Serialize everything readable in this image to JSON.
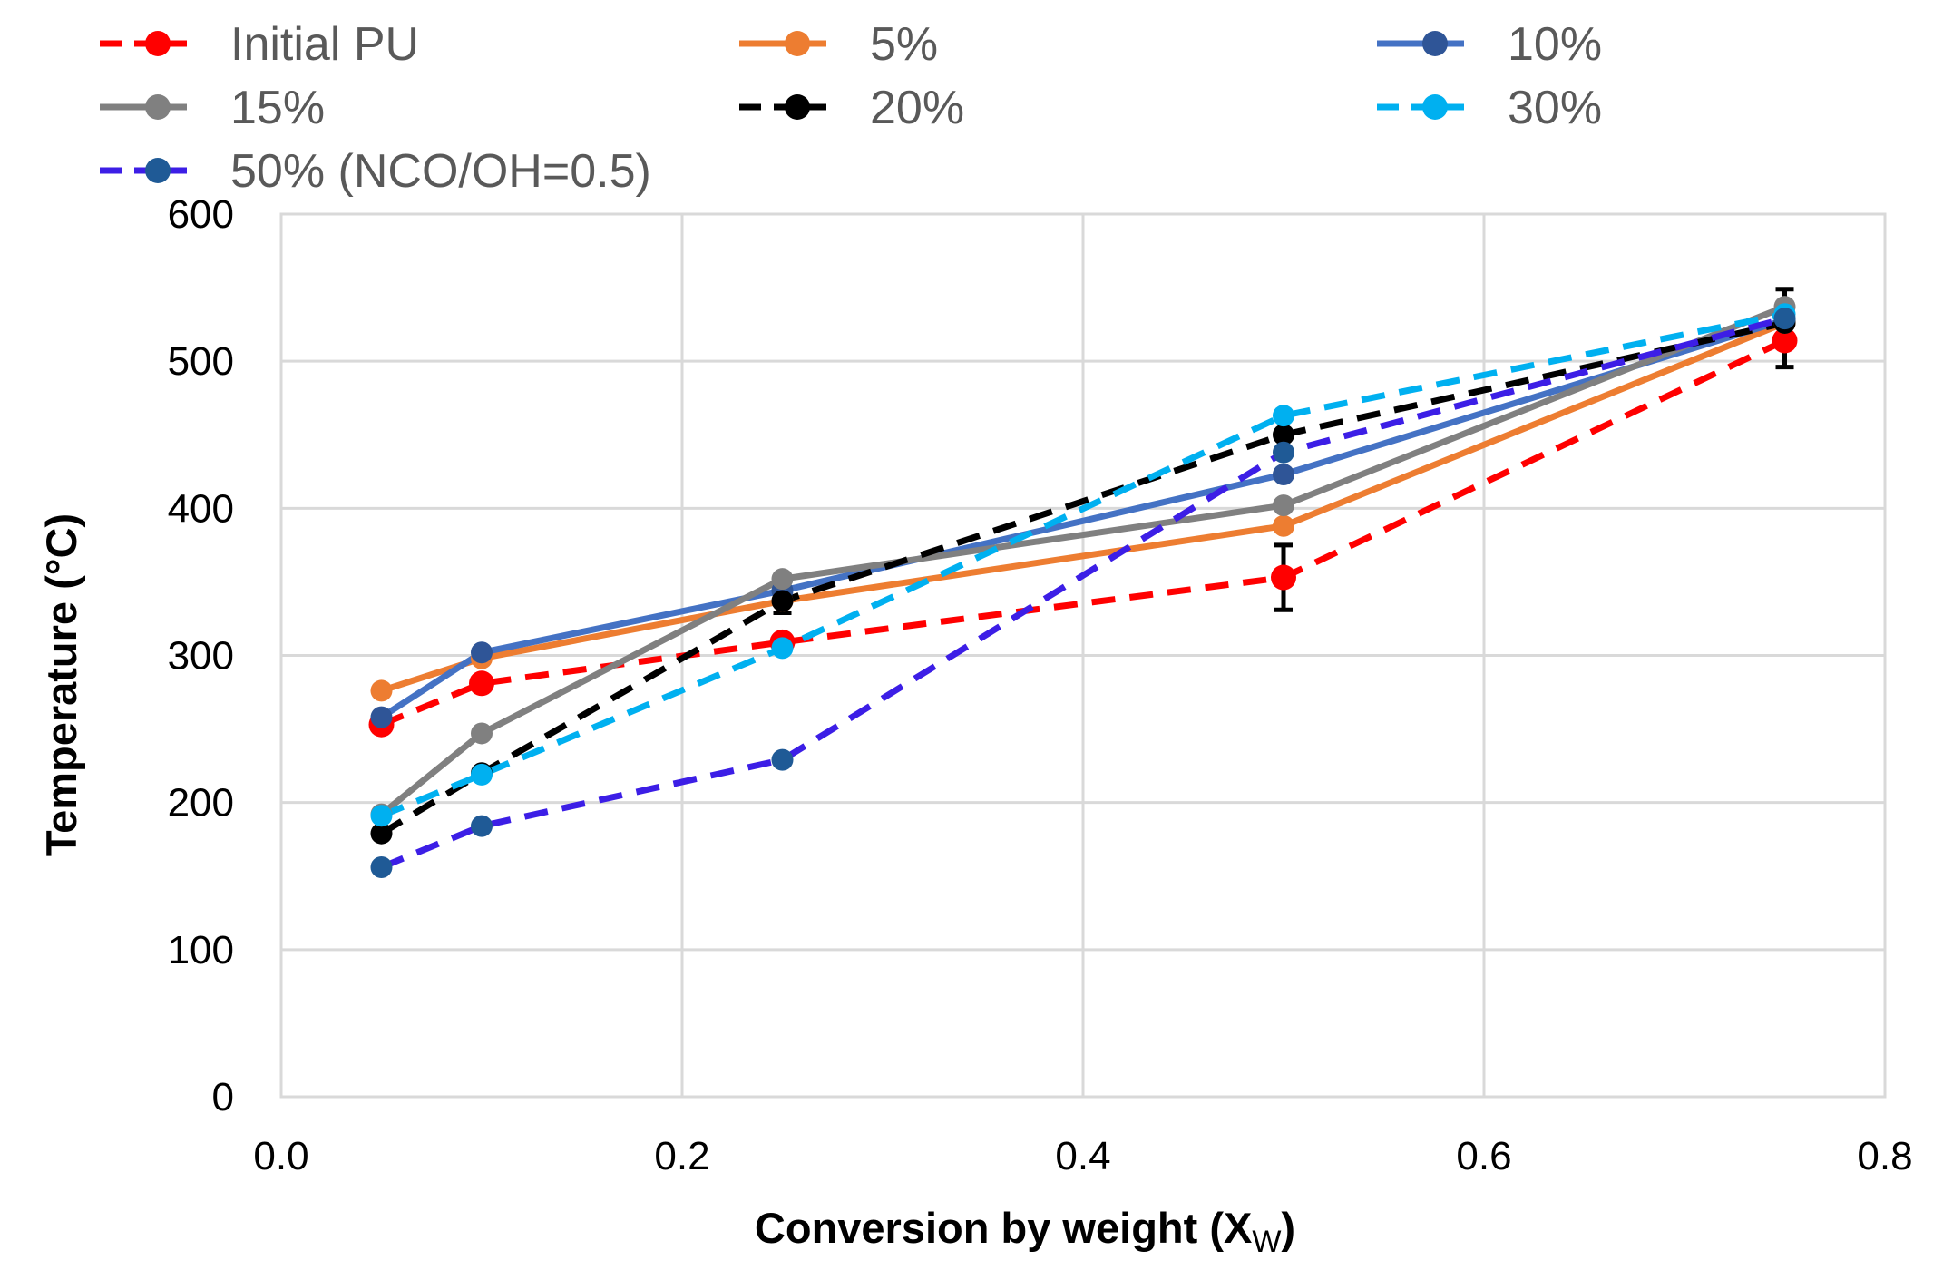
{
  "chart_data": {
    "type": "line",
    "xlabel": "Conversion by weight (X",
    "xlabel_sub": "W",
    "xlabel_close": ")",
    "ylabel": "Temperature (°C)",
    "xlim": [
      0.0,
      0.8
    ],
    "ylim": [
      0,
      600
    ],
    "x_ticks": [
      "0.0",
      "0.2",
      "0.4",
      "0.6",
      "0.8"
    ],
    "y_ticks": [
      "0",
      "100",
      "200",
      "300",
      "400",
      "500",
      "600"
    ],
    "grid": true,
    "legend_position": "top",
    "series": [
      {
        "name": "Initial PU",
        "color": "#ff0000",
        "marker_color": "#ff0000",
        "dashed": true,
        "x": [
          0.05,
          0.1,
          0.25,
          0.5,
          0.75
        ],
        "y": [
          253,
          281,
          309,
          353,
          514
        ],
        "error": [
          0,
          0,
          0,
          22,
          18
        ]
      },
      {
        "name": "5%",
        "color": "#ed7d31",
        "marker_color": "#ed7d31",
        "dashed": false,
        "x": [
          0.05,
          0.1,
          0.25,
          0.5,
          0.75
        ],
        "y": [
          276,
          298,
          337,
          388,
          526
        ],
        "error": [
          0,
          0,
          0,
          0,
          0
        ]
      },
      {
        "name": "10%",
        "color": "#4472c4",
        "marker_color": "#2f5597",
        "dashed": false,
        "x": [
          0.05,
          0.1,
          0.25,
          0.5,
          0.75
        ],
        "y": [
          258,
          302,
          344,
          423,
          528
        ],
        "error": [
          0,
          0,
          0,
          0,
          0
        ]
      },
      {
        "name": "15%",
        "color": "#808080",
        "marker_color": "#808080",
        "dashed": false,
        "x": [
          0.05,
          0.1,
          0.25,
          0.5,
          0.75
        ],
        "y": [
          192,
          247,
          352,
          402,
          537
        ],
        "error": [
          0,
          0,
          0,
          0,
          12
        ]
      },
      {
        "name": "20%",
        "color": "#000000",
        "marker_color": "#000000",
        "dashed": true,
        "x": [
          0.05,
          0.1,
          0.25,
          0.5,
          0.75
        ],
        "y": [
          179,
          220,
          337,
          450,
          526
        ],
        "error": [
          0,
          0,
          8,
          12,
          0
        ]
      },
      {
        "name": "30%",
        "color": "#00b0f0",
        "marker_color": "#00b0f0",
        "dashed": true,
        "x": [
          0.05,
          0.1,
          0.25,
          0.5,
          0.75
        ],
        "y": [
          191,
          219,
          305,
          463,
          532
        ],
        "error": [
          0,
          0,
          0,
          0,
          0
        ]
      },
      {
        "name": "50% (NCO/OH=0.5)",
        "color": "#3c1ee6",
        "marker_color": "#1f5a96",
        "dashed": true,
        "x": [
          0.05,
          0.1,
          0.25,
          0.5,
          0.75
        ],
        "y": [
          156,
          184,
          229,
          438,
          529
        ],
        "error": [
          0,
          0,
          0,
          0,
          0
        ]
      }
    ]
  }
}
